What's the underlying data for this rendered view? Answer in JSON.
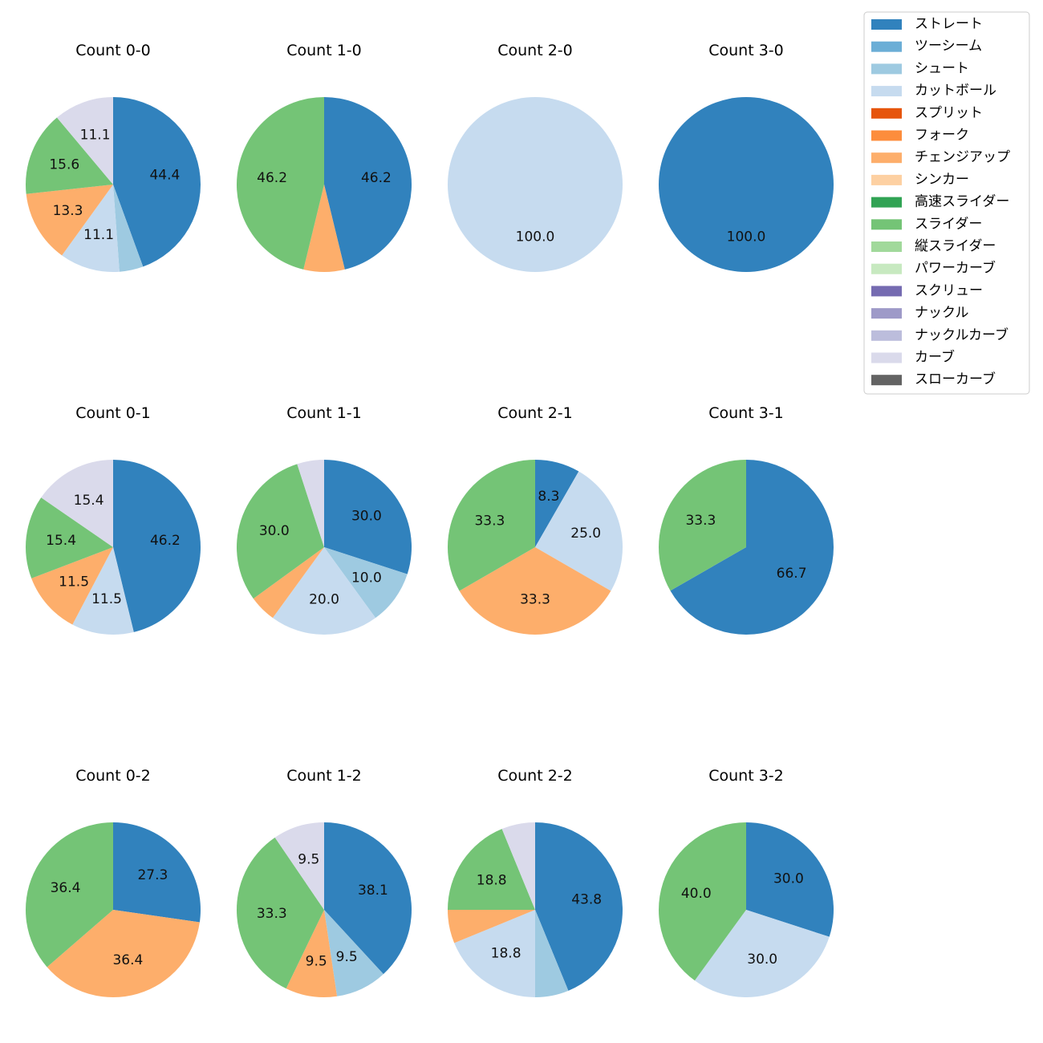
{
  "legend": [
    {
      "label": "ストレート",
      "color": "#3182bd"
    },
    {
      "label": "ツーシーム",
      "color": "#6baed6"
    },
    {
      "label": "シュート",
      "color": "#9ecae1"
    },
    {
      "label": "カットボール",
      "color": "#c6dbef"
    },
    {
      "label": "スプリット",
      "color": "#e6550d"
    },
    {
      "label": "フォーク",
      "color": "#fd8d3c"
    },
    {
      "label": "チェンジアップ",
      "color": "#fdae6b"
    },
    {
      "label": "シンカー",
      "color": "#fdd0a2"
    },
    {
      "label": "高速スライダー",
      "color": "#31a354"
    },
    {
      "label": "スライダー",
      "color": "#74c476"
    },
    {
      "label": "縦スライダー",
      "color": "#a1d99b"
    },
    {
      "label": "パワーカーブ",
      "color": "#c7e9c0"
    },
    {
      "label": "スクリュー",
      "color": "#756bb1"
    },
    {
      "label": "ナックル",
      "color": "#9e9ac8"
    },
    {
      "label": "ナックルカーブ",
      "color": "#bcbddc"
    },
    {
      "label": "カーブ",
      "color": "#dadaeb"
    },
    {
      "label": "スローカーブ",
      "color": "#636363"
    }
  ],
  "chart_data": [
    {
      "type": "pie",
      "title": "Count 0-0",
      "slices": [
        {
          "pitch": "ストレート",
          "value": 44.4,
          "label": "44.4"
        },
        {
          "pitch": "シュート",
          "value": 4.4,
          "label": ""
        },
        {
          "pitch": "カットボール",
          "value": 11.1,
          "label": "11.1"
        },
        {
          "pitch": "チェンジアップ",
          "value": 13.3,
          "label": "13.3"
        },
        {
          "pitch": "スライダー",
          "value": 15.6,
          "label": "15.6"
        },
        {
          "pitch": "カーブ",
          "value": 11.1,
          "label": "11.1"
        }
      ]
    },
    {
      "type": "pie",
      "title": "Count 1-0",
      "slices": [
        {
          "pitch": "ストレート",
          "value": 46.2,
          "label": "46.2"
        },
        {
          "pitch": "チェンジアップ",
          "value": 7.6,
          "label": ""
        },
        {
          "pitch": "スライダー",
          "value": 46.2,
          "label": "46.2"
        }
      ]
    },
    {
      "type": "pie",
      "title": "Count 2-0",
      "slices": [
        {
          "pitch": "カットボール",
          "value": 100.0,
          "label": "100.0"
        }
      ]
    },
    {
      "type": "pie",
      "title": "Count 3-0",
      "slices": [
        {
          "pitch": "ストレート",
          "value": 100.0,
          "label": "100.0"
        }
      ]
    },
    {
      "type": "pie",
      "title": "Count 0-1",
      "slices": [
        {
          "pitch": "ストレート",
          "value": 46.2,
          "label": "46.2"
        },
        {
          "pitch": "カットボール",
          "value": 11.5,
          "label": "11.5"
        },
        {
          "pitch": "チェンジアップ",
          "value": 11.5,
          "label": "11.5"
        },
        {
          "pitch": "スライダー",
          "value": 15.4,
          "label": "15.4"
        },
        {
          "pitch": "カーブ",
          "value": 15.4,
          "label": "15.4"
        }
      ]
    },
    {
      "type": "pie",
      "title": "Count 1-1",
      "slices": [
        {
          "pitch": "ストレート",
          "value": 30.0,
          "label": "30.0"
        },
        {
          "pitch": "シュート",
          "value": 10.0,
          "label": "10.0"
        },
        {
          "pitch": "カットボール",
          "value": 20.0,
          "label": "20.0"
        },
        {
          "pitch": "チェンジアップ",
          "value": 5.0,
          "label": ""
        },
        {
          "pitch": "スライダー",
          "value": 30.0,
          "label": "30.0"
        },
        {
          "pitch": "カーブ",
          "value": 5.0,
          "label": ""
        }
      ]
    },
    {
      "type": "pie",
      "title": "Count 2-1",
      "slices": [
        {
          "pitch": "ストレート",
          "value": 8.3,
          "label": "8.3"
        },
        {
          "pitch": "カットボール",
          "value": 25.0,
          "label": "25.0"
        },
        {
          "pitch": "チェンジアップ",
          "value": 33.3,
          "label": "33.3"
        },
        {
          "pitch": "スライダー",
          "value": 33.3,
          "label": "33.3"
        }
      ]
    },
    {
      "type": "pie",
      "title": "Count 3-1",
      "slices": [
        {
          "pitch": "ストレート",
          "value": 66.7,
          "label": "66.7"
        },
        {
          "pitch": "スライダー",
          "value": 33.3,
          "label": "33.3"
        }
      ]
    },
    {
      "type": "pie",
      "title": "Count 0-2",
      "slices": [
        {
          "pitch": "ストレート",
          "value": 27.3,
          "label": "27.3"
        },
        {
          "pitch": "チェンジアップ",
          "value": 36.4,
          "label": "36.4"
        },
        {
          "pitch": "スライダー",
          "value": 36.4,
          "label": "36.4"
        }
      ]
    },
    {
      "type": "pie",
      "title": "Count 1-2",
      "slices": [
        {
          "pitch": "ストレート",
          "value": 38.1,
          "label": "38.1"
        },
        {
          "pitch": "シュート",
          "value": 9.5,
          "label": "9.5"
        },
        {
          "pitch": "チェンジアップ",
          "value": 9.5,
          "label": "9.5"
        },
        {
          "pitch": "スライダー",
          "value": 33.3,
          "label": "33.3"
        },
        {
          "pitch": "カーブ",
          "value": 9.5,
          "label": "9.5"
        }
      ]
    },
    {
      "type": "pie",
      "title": "Count 2-2",
      "slices": [
        {
          "pitch": "ストレート",
          "value": 43.8,
          "label": "43.8"
        },
        {
          "pitch": "シュート",
          "value": 6.2,
          "label": ""
        },
        {
          "pitch": "カットボール",
          "value": 18.8,
          "label": "18.8"
        },
        {
          "pitch": "チェンジアップ",
          "value": 6.2,
          "label": ""
        },
        {
          "pitch": "スライダー",
          "value": 18.8,
          "label": "18.8"
        },
        {
          "pitch": "カーブ",
          "value": 6.2,
          "label": ""
        }
      ]
    },
    {
      "type": "pie",
      "title": "Count 3-2",
      "slices": [
        {
          "pitch": "ストレート",
          "value": 30.0,
          "label": "30.0"
        },
        {
          "pitch": "カットボール",
          "value": 30.0,
          "label": "30.0"
        },
        {
          "pitch": "スライダー",
          "value": 40.0,
          "label": "40.0"
        }
      ]
    }
  ]
}
